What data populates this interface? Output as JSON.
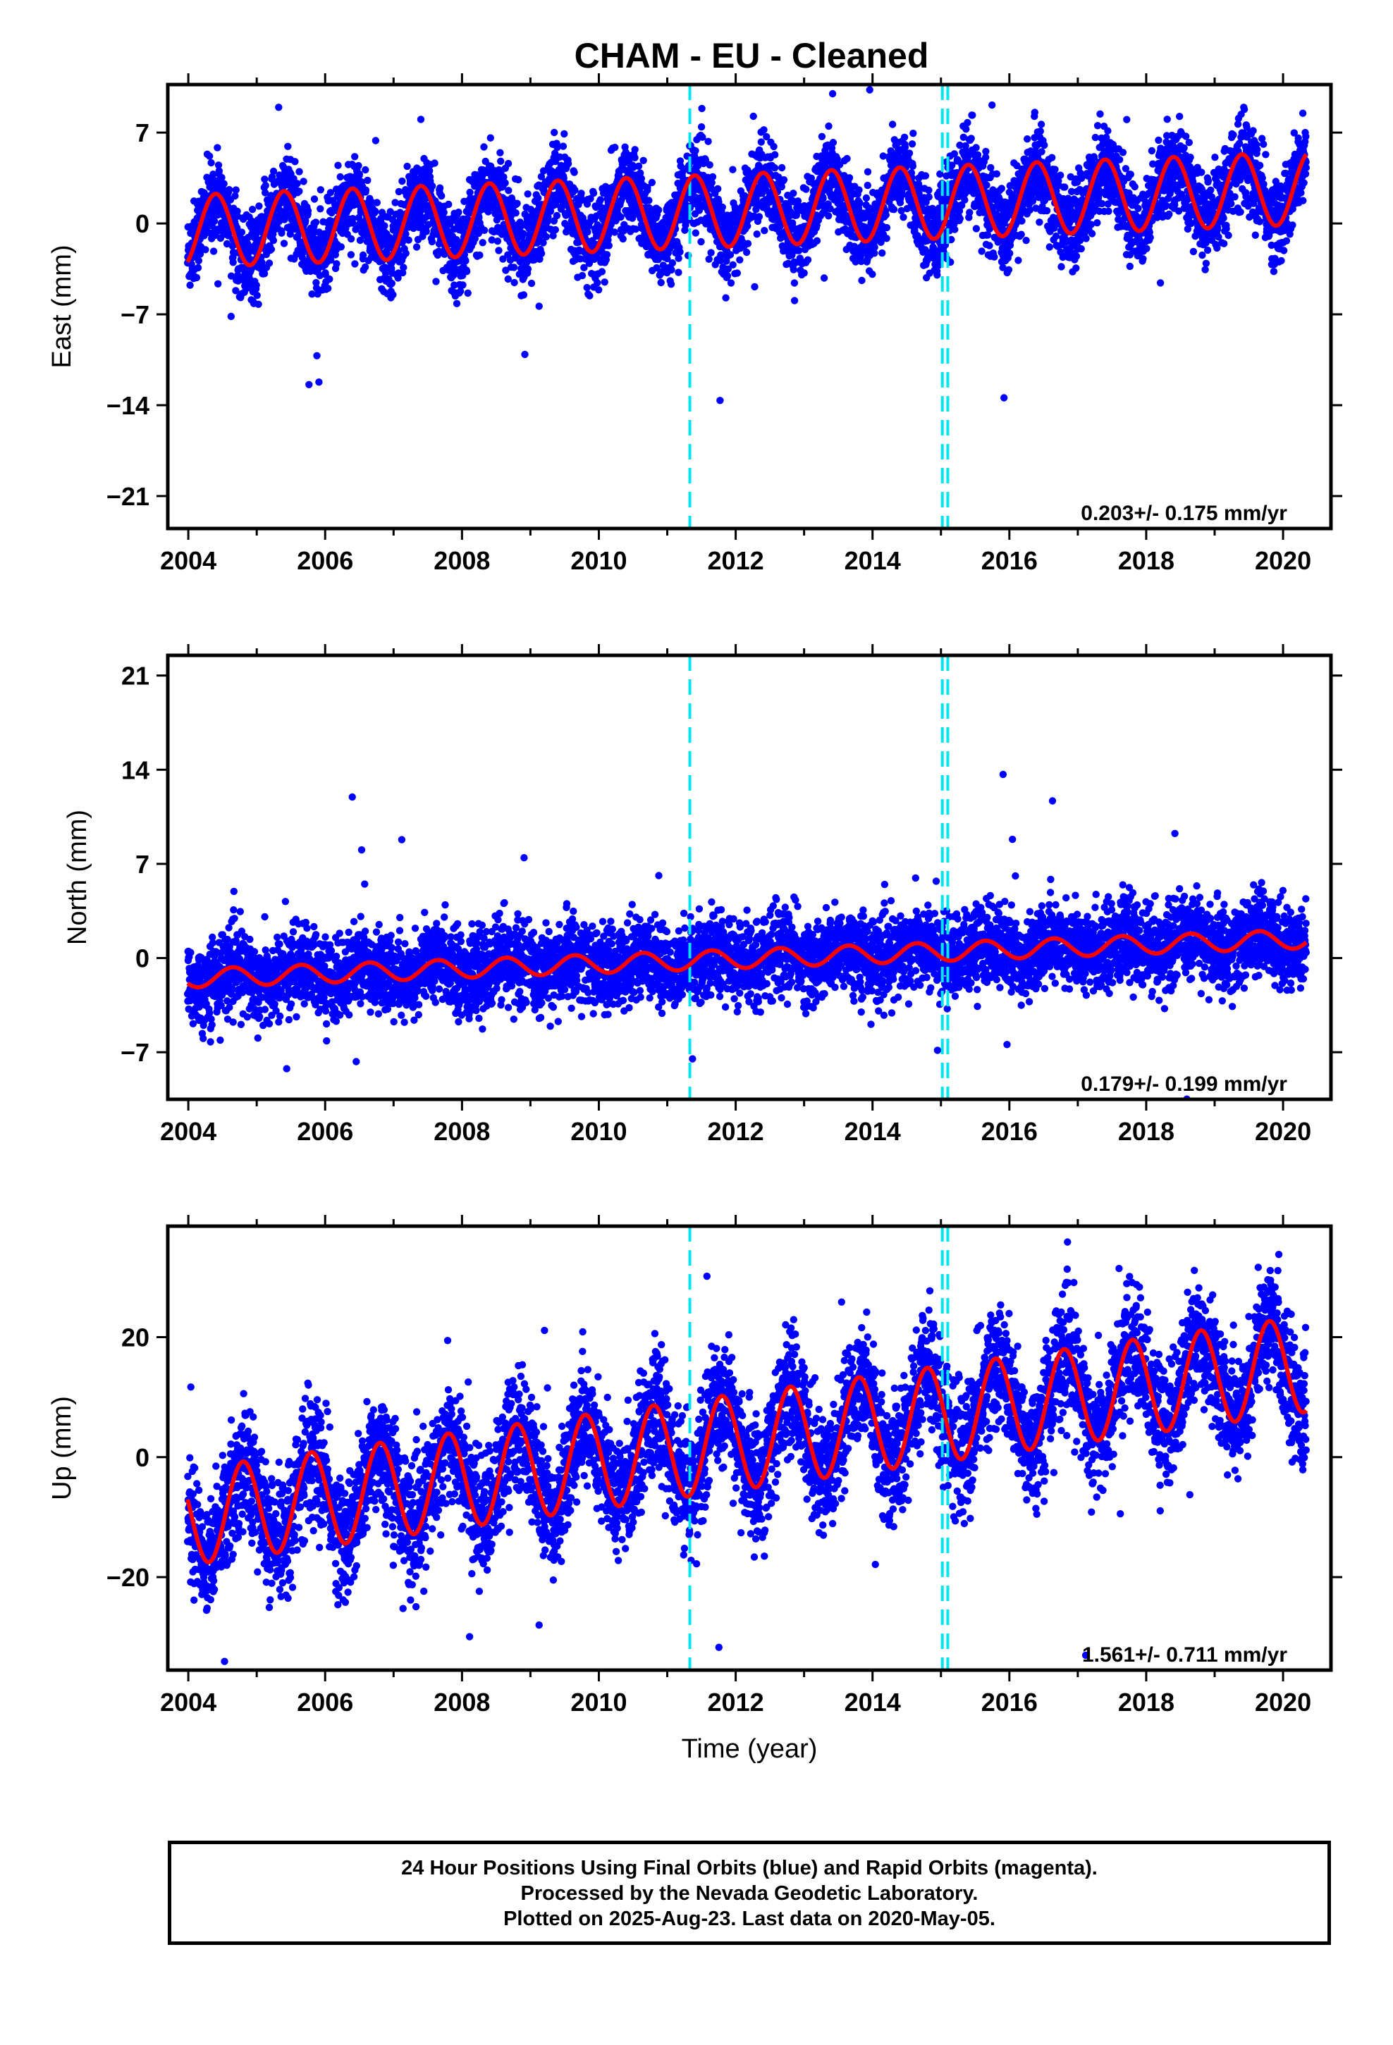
{
  "chart_data": {
    "title": "CHAM  - EU - Cleaned",
    "xlabel": "Time (year)",
    "xlim": [
      2003.7,
      2020.7
    ],
    "x_ticks": [
      "2004",
      "2006",
      "2008",
      "2010",
      "2012",
      "2014",
      "2016",
      "2018",
      "2020"
    ],
    "data_span": [
      2003.99,
      2020.34
    ],
    "equipment_changes": [
      2011.33,
      2015.02,
      2015.1
    ],
    "colors": {
      "data": "#0000ff",
      "model": "#ff0000",
      "steps": "#00e5ee",
      "axis": "#000000"
    },
    "panels": [
      {
        "type": "scatter",
        "ylabel": "East (mm)",
        "ylim": [
          -23.5,
          10.7
        ],
        "y_ticks": [
          "7",
          "0",
          "-7",
          "-14",
          "-21"
        ],
        "rate": "0.203+/- 0.175 mm/yr",
        "series": [
          {
            "name": "Daily positions",
            "kind": "points",
            "amplitude": 2.3,
            "phase": 0.15,
            "trend": 0.203,
            "noise": 1.6,
            "offset": -0.6
          },
          {
            "name": "Model fit",
            "kind": "line",
            "amplitude": 2.8,
            "phase": 0.15,
            "trend": 0.203,
            "offset": -0.6
          }
        ]
      },
      {
        "type": "scatter",
        "ylabel": "North (mm)",
        "ylim": [
          -10.5,
          22.5
        ],
        "y_ticks": [
          "21",
          "14",
          "7",
          "0",
          "-7"
        ],
        "rate": "0.179+/- 0.199 mm/yr",
        "series": [
          {
            "name": "Daily positions",
            "kind": "points",
            "amplitude": 0.6,
            "phase": 0.4,
            "trend": 0.179,
            "noise": 1.5,
            "offset": -1.5
          },
          {
            "name": "Model fit",
            "kind": "line",
            "amplitude": 0.7,
            "phase": 0.4,
            "trend": 0.179,
            "offset": -1.5
          }
        ]
      },
      {
        "type": "scatter",
        "ylabel": "Up (mm)",
        "ylim": [
          -35.5,
          38.5
        ],
        "y_ticks": [
          "20",
          "0",
          "-20"
        ],
        "rate": "1.561+/- 0.711 mm/yr",
        "series": [
          {
            "name": "Daily positions",
            "kind": "points",
            "amplitude": 7.0,
            "phase": 0.55,
            "trend": 1.561,
            "noise": 5.0,
            "offset": -10.0
          },
          {
            "name": "Model fit",
            "kind": "line",
            "amplitude": 8.0,
            "phase": 0.55,
            "trend": 1.561,
            "offset": -10.0
          }
        ]
      }
    ]
  },
  "footer": {
    "line1": "24 Hour Positions Using Final Orbits (blue) and Rapid Orbits (magenta).",
    "line2": "Processed by the Nevada Geodetic Laboratory.",
    "line3": "Plotted on 2025-Aug-23. Last data on 2020-May-05."
  }
}
